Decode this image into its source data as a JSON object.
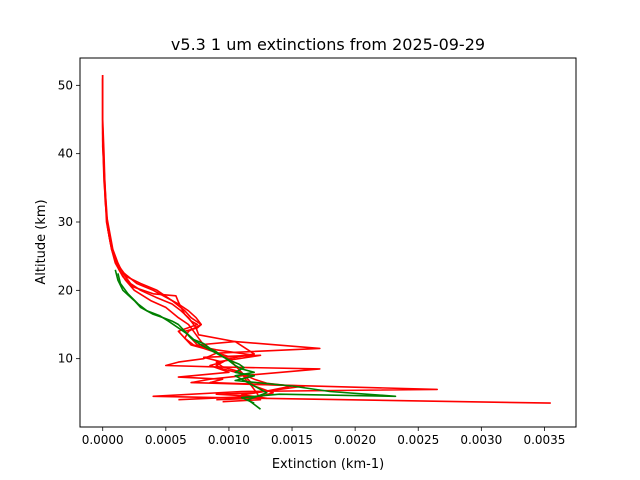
{
  "chart_data": {
    "type": "line",
    "title": "v5.3 1 um extinctions from 2025-09-29",
    "xlabel": "Extinction (km-1)",
    "ylabel": "Altitude (km)",
    "xlim": [
      -0.00018,
      0.00375
    ],
    "ylim": [
      0,
      54
    ],
    "xticks": [
      0.0,
      0.0005,
      0.001,
      0.0015,
      0.002,
      0.0025,
      0.003,
      0.0035
    ],
    "xtick_labels": [
      "0.0000",
      "0.0005",
      "0.0010",
      "0.0015",
      "0.0020",
      "0.0025",
      "0.0030",
      "0.0035"
    ],
    "yticks": [
      10,
      20,
      30,
      40,
      50
    ],
    "ytick_labels": [
      "10",
      "20",
      "30",
      "40",
      "50"
    ],
    "grid": false,
    "colors": {
      "red": "#ff0000",
      "green": "#008000"
    },
    "series": [
      {
        "color": "red",
        "points": [
          [
            0.0,
            51.5
          ],
          [
            0.0,
            45
          ],
          [
            1e-05,
            40
          ],
          [
            2e-05,
            34
          ],
          [
            3e-05,
            30
          ],
          [
            6e-05,
            27
          ],
          [
            9e-05,
            25
          ],
          [
            0.00013,
            23
          ],
          [
            0.00018,
            21.5
          ],
          [
            0.00025,
            20
          ],
          [
            0.00038,
            18.5
          ],
          [
            0.0005,
            17.5
          ],
          [
            0.0006,
            16
          ],
          [
            0.00068,
            15
          ],
          [
            0.00072,
            14
          ],
          [
            0.00076,
            13
          ],
          [
            0.0008,
            12
          ],
          [
            0.00088,
            11
          ],
          [
            0.001,
            10
          ],
          [
            0.00105,
            9
          ],
          [
            0.0011,
            8
          ],
          [
            0.00113,
            7
          ],
          [
            0.00118,
            6
          ],
          [
            0.00122,
            5
          ],
          [
            0.00125,
            4
          ],
          [
            0.00095,
            3.7
          ]
        ]
      },
      {
        "color": "red",
        "points": [
          [
            0.0,
            51
          ],
          [
            0.0,
            44
          ],
          [
            1e-05,
            38
          ],
          [
            2e-05,
            33
          ],
          [
            4e-05,
            29
          ],
          [
            7e-05,
            26
          ],
          [
            0.0001,
            24
          ],
          [
            0.00016,
            22
          ],
          [
            0.00024,
            20.5
          ],
          [
            0.0004,
            19.5
          ],
          [
            0.00058,
            19.2
          ],
          [
            0.0006,
            18.3
          ],
          [
            0.00062,
            17.5
          ],
          [
            0.00065,
            16.5
          ],
          [
            0.0007,
            15.5
          ],
          [
            0.00075,
            15
          ],
          [
            0.0006,
            14
          ],
          [
            0.00065,
            13
          ],
          [
            0.0007,
            12
          ],
          [
            0.0008,
            11.5
          ],
          [
            0.00088,
            11
          ],
          [
            0.001,
            10.3
          ],
          [
            0.00125,
            10.5
          ],
          [
            0.0009,
            9.5
          ],
          [
            0.00095,
            8.8
          ],
          [
            0.0011,
            8
          ],
          [
            0.00115,
            7
          ],
          [
            0.0012,
            6
          ],
          [
            0.00135,
            5
          ],
          [
            0.0012,
            4.2
          ],
          [
            0.0009,
            4
          ]
        ]
      },
      {
        "color": "red",
        "points": [
          [
            0.0,
            51.5
          ],
          [
            0.0,
            43
          ],
          [
            1e-05,
            37
          ],
          [
            3e-05,
            32
          ],
          [
            4e-05,
            29
          ],
          [
            8e-05,
            25.5
          ],
          [
            0.00012,
            23.5
          ],
          [
            0.00019,
            22
          ],
          [
            0.0003,
            21
          ],
          [
            0.00043,
            20
          ],
          [
            0.00055,
            18.5
          ],
          [
            0.00065,
            17
          ],
          [
            0.0007,
            16
          ],
          [
            0.00078,
            15
          ],
          [
            0.00075,
            14.5
          ],
          [
            0.00065,
            14
          ],
          [
            0.0007,
            13
          ],
          [
            0.00075,
            12
          ],
          [
            0.00105,
            12.5
          ],
          [
            0.00172,
            11.5
          ],
          [
            0.0009,
            10.8
          ],
          [
            0.0008,
            10
          ],
          [
            0.0006,
            9.5
          ],
          [
            0.0005,
            9
          ],
          [
            0.0009,
            8.8
          ],
          [
            0.00172,
            8.5
          ],
          [
            0.0011,
            7.5
          ],
          [
            0.00085,
            7
          ],
          [
            0.0007,
            6.5
          ],
          [
            0.00125,
            6.2
          ],
          [
            0.00265,
            5.5
          ],
          [
            0.0011,
            5.2
          ],
          [
            0.0004,
            4.5
          ],
          [
            0.0009,
            4.3
          ],
          [
            0.00355,
            3.5
          ]
        ]
      },
      {
        "color": "red",
        "points": [
          [
            0.0,
            51
          ],
          [
            0.0,
            42
          ],
          [
            1e-05,
            36
          ],
          [
            3e-05,
            31
          ],
          [
            5e-05,
            28
          ],
          [
            7e-05,
            26
          ],
          [
            0.00011,
            24
          ],
          [
            0.00017,
            22.5
          ],
          [
            0.00027,
            21
          ],
          [
            0.0004,
            20
          ],
          [
            0.0005,
            19
          ],
          [
            0.0006,
            18
          ],
          [
            0.00068,
            17
          ],
          [
            0.00074,
            16
          ],
          [
            0.00078,
            15
          ],
          [
            0.00068,
            14
          ],
          [
            0.00065,
            13
          ],
          [
            0.00072,
            12
          ],
          [
            0.0009,
            11.3
          ],
          [
            0.0012,
            10.5
          ],
          [
            0.0008,
            10.2
          ],
          [
            0.00095,
            9.5
          ],
          [
            0.00085,
            9
          ],
          [
            0.001,
            8
          ],
          [
            0.0006,
            7.3
          ],
          [
            0.00095,
            7
          ],
          [
            0.00085,
            6.5
          ],
          [
            0.0016,
            6
          ],
          [
            0.0012,
            5
          ],
          [
            0.0009,
            4.8
          ],
          [
            0.0012,
            4.5
          ],
          [
            0.0006,
            4
          ]
        ]
      },
      {
        "color": "red",
        "points": [
          [
            0.0,
            51.5
          ],
          [
            0.0,
            46
          ],
          [
            0.0,
            41
          ],
          [
            2e-05,
            35
          ],
          [
            3e-05,
            31
          ],
          [
            6e-05,
            28
          ],
          [
            8e-05,
            26
          ],
          [
            0.00012,
            24
          ],
          [
            0.00016,
            22.5
          ],
          [
            0.00022,
            21
          ],
          [
            0.0003,
            20
          ],
          [
            0.00042,
            19
          ],
          [
            0.00055,
            18
          ],
          [
            0.00062,
            17
          ],
          [
            0.00068,
            16
          ],
          [
            0.0007,
            15.5
          ],
          [
            0.00074,
            14.5
          ],
          [
            0.00076,
            13.5
          ],
          [
            0.00105,
            12.5
          ],
          [
            0.0012,
            10.7
          ],
          [
            0.001,
            10
          ],
          [
            0.0009,
            9
          ],
          [
            0.00095,
            8.5
          ],
          [
            0.0011,
            7.8
          ],
          [
            0.0012,
            7
          ],
          [
            0.0013,
            6.4
          ],
          [
            0.0015,
            6
          ],
          [
            0.00128,
            5.2
          ],
          [
            0.0011,
            4.7
          ],
          [
            0.0013,
            4.2
          ]
        ]
      },
      {
        "color": "green",
        "points": [
          [
            0.0001,
            23
          ],
          [
            0.00012,
            21.5
          ],
          [
            0.00016,
            20
          ],
          [
            0.00025,
            18.5
          ],
          [
            0.0003,
            17.5
          ],
          [
            0.0004,
            16.5
          ],
          [
            0.00048,
            16
          ],
          [
            0.00055,
            15.5
          ],
          [
            0.0006,
            15
          ],
          [
            0.00065,
            14
          ],
          [
            0.0007,
            13
          ],
          [
            0.00074,
            12.5
          ],
          [
            0.00078,
            12
          ],
          [
            0.00083,
            11.5
          ],
          [
            0.00088,
            11
          ],
          [
            0.00093,
            10.5
          ],
          [
            0.00098,
            10
          ],
          [
            0.00105,
            9
          ],
          [
            0.0011,
            8.5
          ],
          [
            0.0012,
            8
          ],
          [
            0.00105,
            7.5
          ],
          [
            0.0011,
            7
          ],
          [
            0.0012,
            6
          ],
          [
            0.0013,
            5
          ],
          [
            0.00115,
            4
          ],
          [
            0.00125,
            2.6
          ]
        ]
      },
      {
        "color": "green",
        "points": [
          [
            0.00012,
            22.5
          ],
          [
            0.00014,
            21
          ],
          [
            0.0002,
            19.5
          ],
          [
            0.00028,
            18
          ],
          [
            0.00035,
            17
          ],
          [
            0.00045,
            16.3
          ],
          [
            0.00052,
            15.5
          ],
          [
            0.0006,
            14.5
          ],
          [
            0.00068,
            13.5
          ],
          [
            0.00072,
            12.8
          ],
          [
            0.0008,
            12.2
          ],
          [
            0.00085,
            11.5
          ],
          [
            0.0009,
            11
          ],
          [
            0.00095,
            10.3
          ],
          [
            0.001,
            9.8
          ],
          [
            0.00108,
            9.2
          ],
          [
            0.00112,
            8.7
          ],
          [
            0.00105,
            8
          ],
          [
            0.0012,
            7.5
          ],
          [
            0.00105,
            6.8
          ],
          [
            0.0015,
            6
          ],
          [
            0.0018,
            5.2
          ],
          [
            0.00232,
            4.5
          ],
          [
            0.0014,
            4.8
          ],
          [
            0.0011,
            4.3
          ],
          [
            0.0012,
            3.5
          ]
        ]
      }
    ]
  }
}
